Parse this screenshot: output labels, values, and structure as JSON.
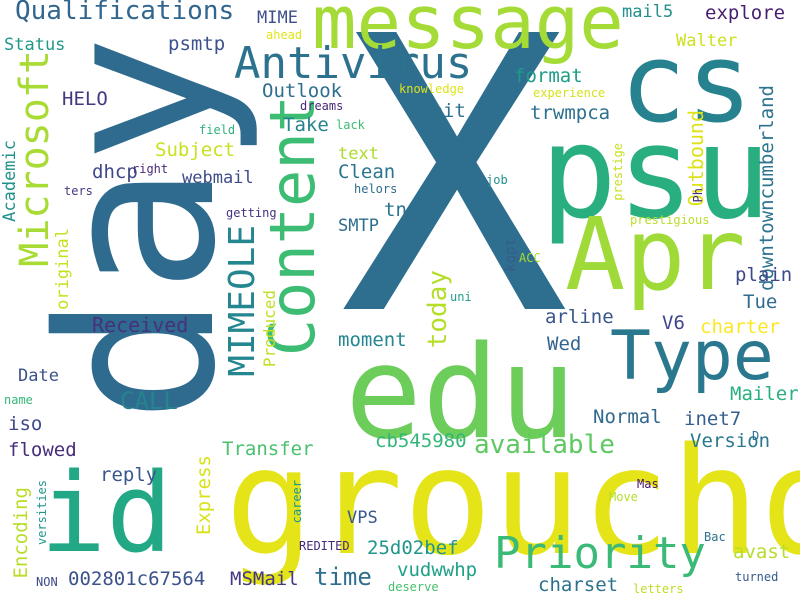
{
  "words": [
    {
      "text": "X",
      "color": "#2e6e8e"
    },
    {
      "text": "day",
      "color": "#2f6b8e"
    },
    {
      "text": "groucho",
      "color": "#e5e419"
    },
    {
      "text": "edu",
      "color": "#6ccd5a"
    },
    {
      "text": "psu",
      "color": "#29af7f"
    },
    {
      "text": "cs",
      "color": "#26828e"
    },
    {
      "text": "Apr",
      "color": "#a0da39"
    },
    {
      "text": "message",
      "color": "#a5db36"
    },
    {
      "text": "id",
      "color": "#22a884"
    },
    {
      "text": "Type",
      "color": "#2a788e"
    },
    {
      "text": "Content",
      "color": "#3dbc74"
    },
    {
      "text": "Priority",
      "color": "#3aba76"
    },
    {
      "text": "Antivirus",
      "color": "#2c728e"
    },
    {
      "text": "Microsoft",
      "color": "#a8db34"
    },
    {
      "text": "MIMEOLE",
      "color": "#24868e"
    },
    {
      "text": "Qualifications",
      "color": "#31668e"
    },
    {
      "text": "available",
      "color": "#5ec962"
    },
    {
      "text": "time",
      "color": "#2e6f8e"
    },
    {
      "text": "CALL",
      "color": "#25848e"
    },
    {
      "text": "today",
      "color": "#b5de2b"
    },
    {
      "text": "Received",
      "color": "#46317e"
    },
    {
      "text": "Outbound",
      "color": "#dde318"
    },
    {
      "text": "downtowncumberland",
      "color": "#2c738e"
    },
    {
      "text": "charter",
      "color": "#fde725"
    },
    {
      "text": "Transfer",
      "color": "#4ac16d"
    },
    {
      "text": "Encoding",
      "color": "#b8de29"
    },
    {
      "text": "Express",
      "color": "#d8e219"
    },
    {
      "text": "002801c67564",
      "color": "#3b528b"
    },
    {
      "text": "MSMail",
      "color": "#443983"
    },
    {
      "text": "charset",
      "color": "#2c718e"
    },
    {
      "text": "vudwwhp",
      "color": "#1fa088"
    },
    {
      "text": "25d02bef",
      "color": "#1f958b"
    },
    {
      "text": "avast",
      "color": "#b5de2b"
    },
    {
      "text": "Mailer",
      "color": "#2ab07f"
    },
    {
      "text": "Version",
      "color": "#2a788e"
    },
    {
      "text": "inet7",
      "color": "#355f8d"
    },
    {
      "text": "Normal",
      "color": "#31688e"
    },
    {
      "text": "cb545980",
      "color": "#34b679"
    },
    {
      "text": "reply",
      "color": "#38588c"
    },
    {
      "text": "flowed",
      "color": "#472d7b"
    },
    {
      "text": "iso",
      "color": "#3e4a89"
    },
    {
      "text": "Date",
      "color": "#3b528b"
    },
    {
      "text": "moment",
      "color": "#24868e"
    },
    {
      "text": "Wed",
      "color": "#32658e"
    },
    {
      "text": "arline",
      "color": "#39568c"
    },
    {
      "text": "V6",
      "color": "#3f4788"
    },
    {
      "text": "Tue",
      "color": "#306a8e"
    },
    {
      "text": "plain",
      "color": "#3e4989"
    },
    {
      "text": "Produced",
      "color": "#c2df23"
    },
    {
      "text": "original",
      "color": "#c8e020"
    },
    {
      "text": "Academic",
      "color": "#21918c"
    },
    {
      "text": "SMTP",
      "color": "#2e6d8e"
    },
    {
      "text": "tn",
      "color": "#2b748e"
    },
    {
      "text": "Clean",
      "color": "#2b758e"
    },
    {
      "text": "text",
      "color": "#addc30"
    },
    {
      "text": "webmail",
      "color": "#3e4c8a"
    },
    {
      "text": "dhcp",
      "color": "#3f4889"
    },
    {
      "text": "Subject",
      "color": "#cae11f"
    },
    {
      "text": "Take",
      "color": "#26828e"
    },
    {
      "text": "Outlook",
      "color": "#2e6e8e"
    },
    {
      "text": "HELO",
      "color": "#453781"
    },
    {
      "text": "7bit",
      "color": "#2d718e"
    },
    {
      "text": "trwmpca",
      "color": "#2d708e"
    },
    {
      "text": "format",
      "color": "#1e9c89"
    },
    {
      "text": "Walter",
      "color": "#cde11d"
    },
    {
      "text": "explore",
      "color": "#481f70"
    },
    {
      "text": "mail5",
      "color": "#21918c"
    },
    {
      "text": "psmtp",
      "color": "#3b528b"
    },
    {
      "text": "MIME",
      "color": "#3d4e8a"
    },
    {
      "text": "Status",
      "color": "#1f9a8a"
    },
    {
      "text": "ahead",
      "color": "#e2e418"
    },
    {
      "text": "dreams",
      "color": "#472a7a"
    },
    {
      "text": "knowledge",
      "color": "#dde318"
    },
    {
      "text": "experience",
      "color": "#d5e21a"
    },
    {
      "text": "field",
      "color": "#2db27d"
    },
    {
      "text": "lack",
      "color": "#3dbc74"
    },
    {
      "text": "prestige",
      "color": "#c8e020"
    },
    {
      "text": "prestigious",
      "color": "#b8de29"
    },
    {
      "text": "Ph",
      "color": "#472d7b"
    },
    {
      "text": "helors",
      "color": "#2f6c8e"
    },
    {
      "text": "job",
      "color": "#21908d"
    },
    {
      "text": "right",
      "color": "#482878"
    },
    {
      "text": "ters",
      "color": "#453882"
    },
    {
      "text": "getting",
      "color": "#46327e"
    },
    {
      "text": "kgpt",
      "color": "#365c8d"
    },
    {
      "text": "ACC",
      "color": "#a8db34"
    },
    {
      "text": "uni",
      "color": "#1f9e89"
    },
    {
      "text": "name",
      "color": "#35b779"
    },
    {
      "text": "D",
      "color": "#2d708e"
    },
    {
      "text": "Mas",
      "color": "#471365"
    },
    {
      "text": "Move",
      "color": "#b5de2b"
    },
    {
      "text": "Bac",
      "color": "#2c728e"
    },
    {
      "text": "turned",
      "color": "#375a8c"
    },
    {
      "text": "letters",
      "color": "#bddf26"
    },
    {
      "text": "deserve",
      "color": "#46c06f"
    },
    {
      "text": "REDITED",
      "color": "#482979"
    },
    {
      "text": "VPS",
      "color": "#38588c"
    },
    {
      "text": "career",
      "color": "#1f968b"
    },
    {
      "text": "versities",
      "color": "#1f978b"
    },
    {
      "text": "NON",
      "color": "#3e4989"
    }
  ]
}
